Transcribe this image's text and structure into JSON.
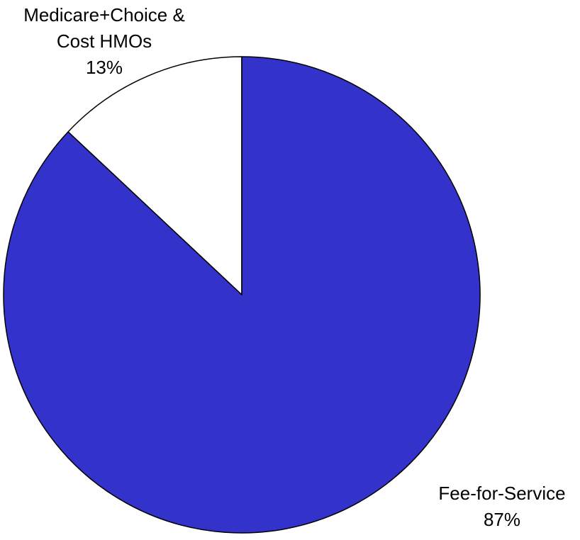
{
  "chart_data": {
    "type": "pie",
    "title": "",
    "slices": [
      {
        "label_lines": [
          "Medicare+Choice &",
          "Cost HMOs"
        ],
        "value_label": "13%",
        "value": 13,
        "color": "#ffffff"
      },
      {
        "label_lines": [
          "Fee-for-Service"
        ],
        "value_label": "87%",
        "value": 87,
        "color": "#3333cc"
      }
    ],
    "stroke_color": "#000000",
    "start_angle": "12 o'clock, slices ordered counter-clockwise"
  }
}
